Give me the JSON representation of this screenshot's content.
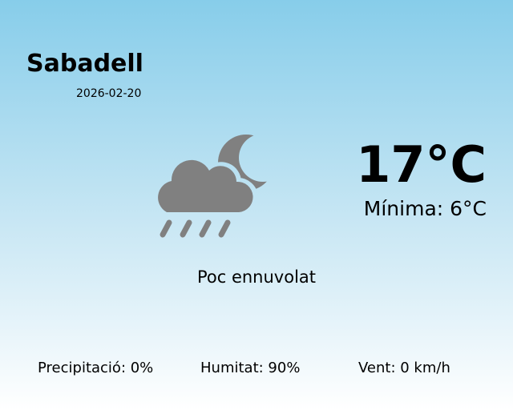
{
  "city": "Sabadell",
  "date": "2026-02-20",
  "temperature": "17°C",
  "minimum": "Mínima: 6°C",
  "condition": "Poc ennuvolat",
  "condition_icon": "cloud-rain-moon-icon",
  "icon_color": "#808080",
  "stats": {
    "precipitation": "Precipitació: 0%",
    "humidity": "Humitat: 90%",
    "wind": "Vent: 0 km/h"
  }
}
